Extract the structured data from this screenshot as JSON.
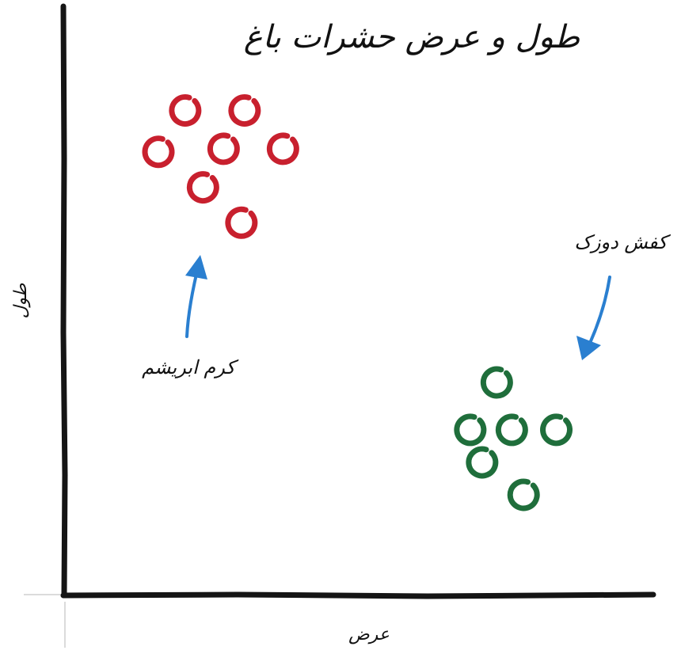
{
  "chart_data": {
    "type": "scatter",
    "title": "طول و عرض حشرات باغ",
    "xlabel": "عرض",
    "ylabel": "طول",
    "grid": false,
    "legend": "none",
    "series": [
      {
        "color": "#c8202e",
        "points": [
          {
            "x": 2.05,
            "y": 8.2
          },
          {
            "x": 3.05,
            "y": 8.2
          },
          {
            "x": 1.6,
            "y": 7.5
          },
          {
            "x": 2.7,
            "y": 7.55
          },
          {
            "x": 3.7,
            "y": 7.55
          },
          {
            "x": 2.35,
            "y": 6.9
          },
          {
            "x": 3.0,
            "y": 6.3
          }
        ]
      },
      {
        "color": "#1f6e3b",
        "points": [
          {
            "x": 7.3,
            "y": 3.6
          },
          {
            "x": 6.85,
            "y": 2.8
          },
          {
            "x": 7.55,
            "y": 2.8
          },
          {
            "x": 8.3,
            "y": 2.8
          },
          {
            "x": 7.05,
            "y": 2.25
          },
          {
            "x": 7.75,
            "y": 1.7
          }
        ]
      }
    ],
    "annotations": [
      {
        "text": "کرم ابریشم",
        "color": "#2a7fd0"
      },
      {
        "text": "کفش دوزک",
        "color": "#2a7fd0"
      }
    ]
  }
}
